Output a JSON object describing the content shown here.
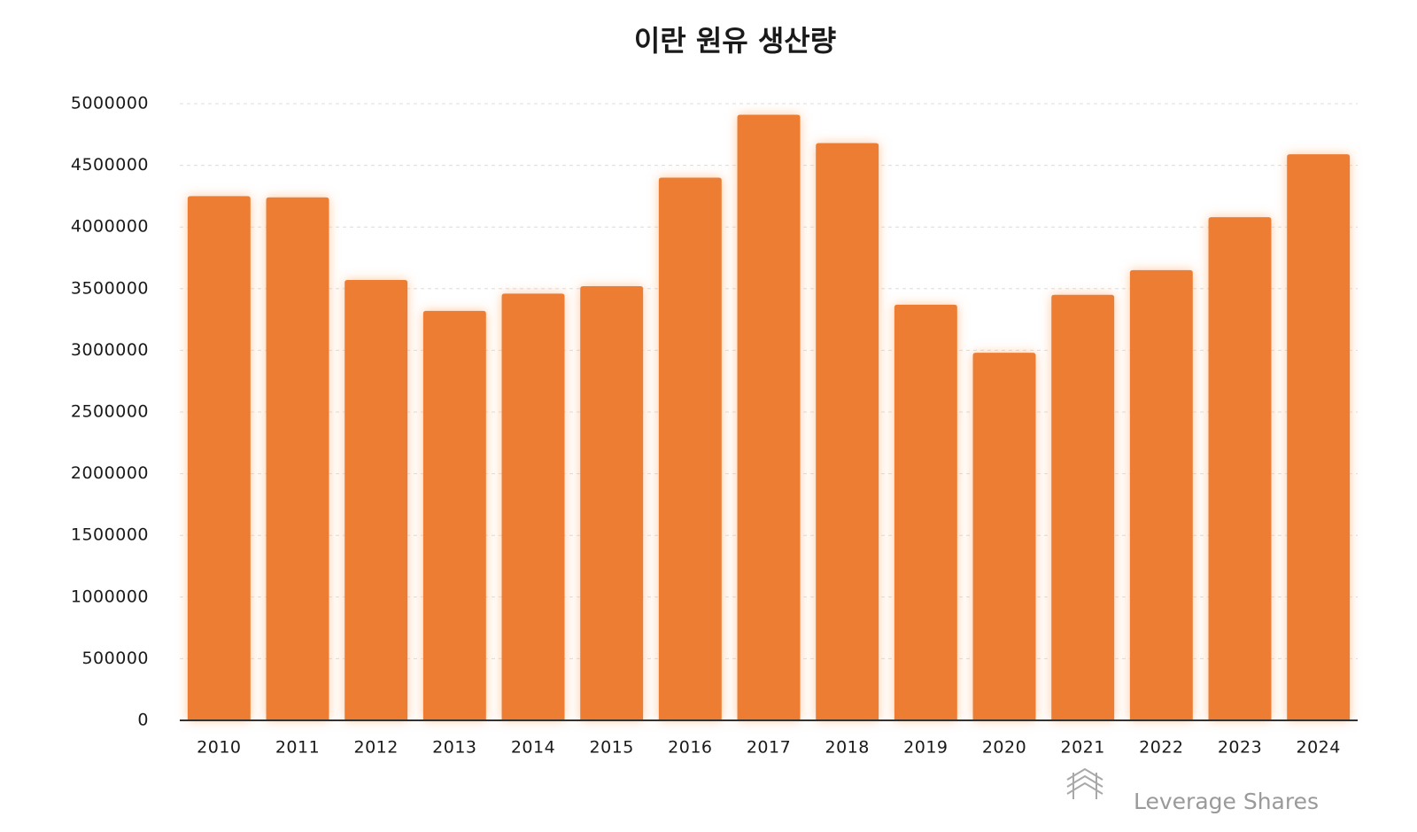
{
  "chart_data": {
    "type": "bar",
    "title": "이란 원유 생산량",
    "categories": [
      "2010",
      "2011",
      "2012",
      "2013",
      "2014",
      "2015",
      "2016",
      "2017",
      "2018",
      "2019",
      "2020",
      "2021",
      "2022",
      "2023",
      "2024"
    ],
    "values": [
      4250000,
      4240000,
      3570000,
      3320000,
      3460000,
      3520000,
      4400000,
      4910000,
      4680000,
      3370000,
      2980000,
      3450000,
      3650000,
      4080000,
      4590000
    ],
    "color": "#ed7d31",
    "ylim": [
      0,
      5000000
    ],
    "yticks": [
      0,
      500000,
      1000000,
      1500000,
      2000000,
      2500000,
      3000000,
      3500000,
      4000000,
      4500000,
      5000000
    ],
    "grid": true,
    "watermark": "Leverage Shares"
  }
}
